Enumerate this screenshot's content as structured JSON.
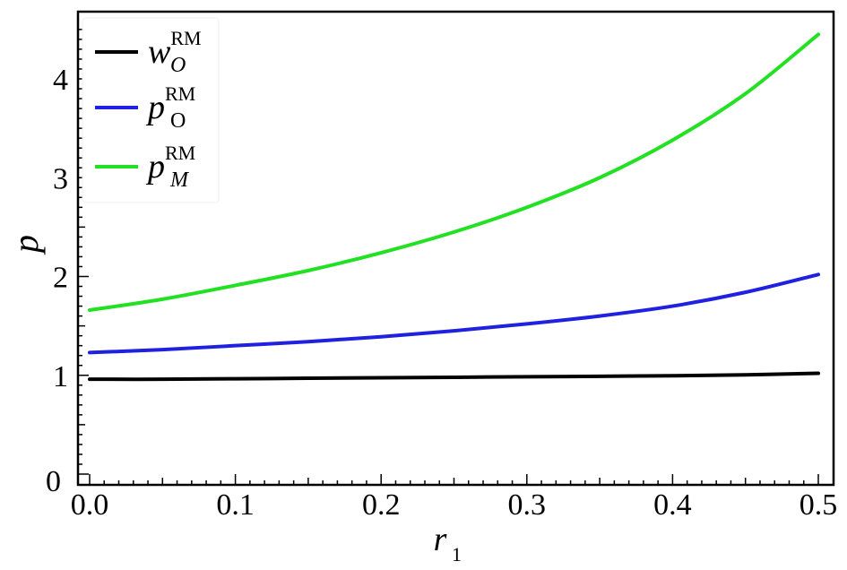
{
  "chart_data": {
    "type": "line",
    "title": "",
    "xlabel": "r",
    "xlabel_sub": "1",
    "ylabel": "p",
    "xlim": [
      0.0,
      0.5
    ],
    "ylim": [
      0,
      4.7
    ],
    "xticks": [
      0.0,
      0.1,
      0.2,
      0.3,
      0.4,
      0.5
    ],
    "xtick_labels": [
      "0.0",
      "0.1",
      "0.2",
      "0.3",
      "0.4",
      "0.5"
    ],
    "yticks": [
      0,
      1,
      2,
      3,
      4
    ],
    "ytick_labels": [
      "0",
      "1",
      "2",
      "3",
      "4"
    ],
    "grid": false,
    "legend_position": "top-left",
    "series": [
      {
        "name": "w_O^RM",
        "legend_base": "w",
        "legend_sub": "O",
        "legend_sup": "RM",
        "sub_italic": true,
        "color": "#000000",
        "x": [
          0.0,
          0.05,
          0.1,
          0.15,
          0.2,
          0.25,
          0.3,
          0.35,
          0.4,
          0.45,
          0.5
        ],
        "y": [
          0.96,
          0.96,
          0.965,
          0.97,
          0.975,
          0.98,
          0.985,
          0.99,
          0.995,
          1.005,
          1.02
        ]
      },
      {
        "name": "p_O^RM",
        "legend_base": "p",
        "legend_sub": "O",
        "legend_sup": "RM",
        "sub_italic": false,
        "color": "#2020e0",
        "x": [
          0.0,
          0.05,
          0.1,
          0.15,
          0.2,
          0.25,
          0.3,
          0.35,
          0.4,
          0.45,
          0.5
        ],
        "y": [
          1.23,
          1.26,
          1.3,
          1.34,
          1.39,
          1.45,
          1.52,
          1.6,
          1.7,
          1.84,
          2.02
        ]
      },
      {
        "name": "p_M^RM",
        "legend_base": "p",
        "legend_sub": "M",
        "legend_sup": "RM",
        "sub_italic": true,
        "color": "#22e022",
        "x": [
          0.0,
          0.05,
          0.1,
          0.15,
          0.2,
          0.25,
          0.3,
          0.35,
          0.4,
          0.45,
          0.5
        ],
        "y": [
          1.66,
          1.77,
          1.91,
          2.06,
          2.24,
          2.45,
          2.7,
          3.0,
          3.38,
          3.85,
          4.45
        ]
      }
    ]
  }
}
